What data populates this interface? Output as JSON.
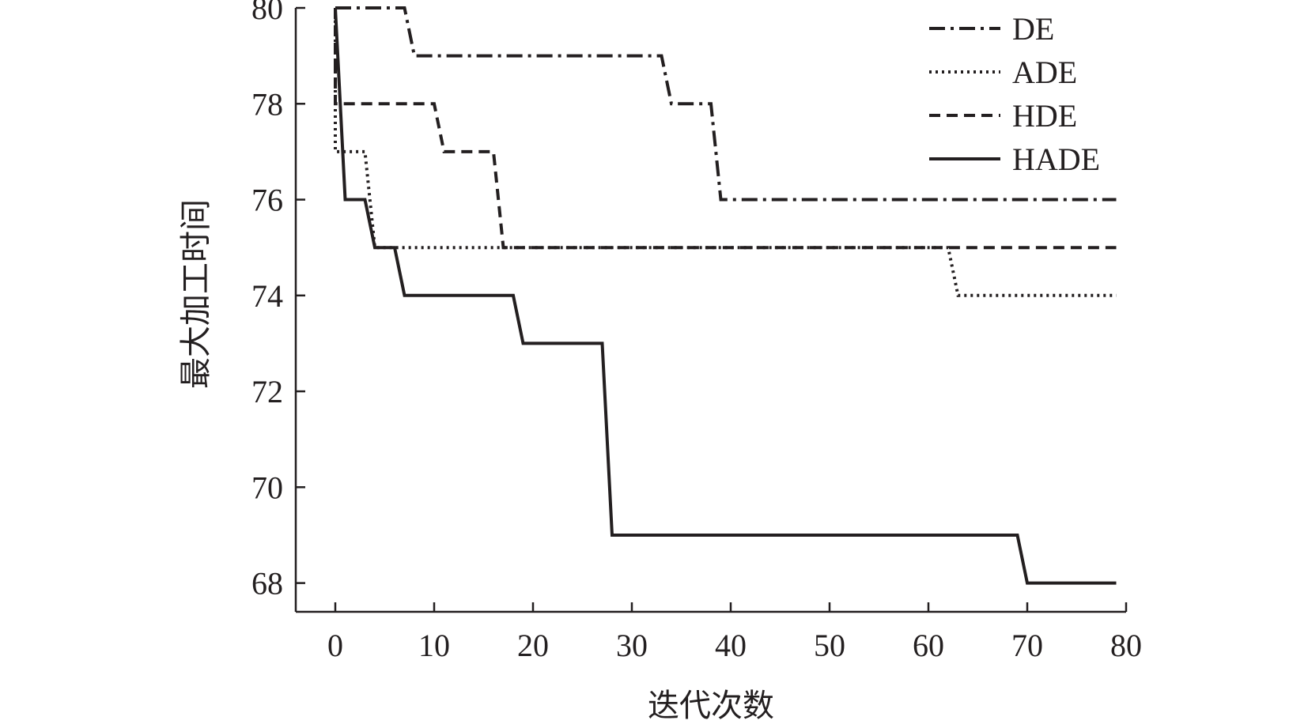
{
  "chart_data": {
    "type": "line",
    "title": "",
    "xlabel": "迭代次数",
    "ylabel": "最大加工时间",
    "xlim": [
      -4,
      80
    ],
    "ylim": [
      67.4,
      80
    ],
    "xticks": [
      0,
      10,
      20,
      30,
      40,
      50,
      60,
      70,
      80
    ],
    "yticks": [
      68,
      70,
      72,
      74,
      76,
      78,
      80
    ],
    "legend_position": "top-right",
    "grid": false,
    "series": [
      {
        "name": "DE",
        "style": "dashdot",
        "color": "#231f20",
        "points": [
          [
            0,
            80
          ],
          [
            7,
            80
          ],
          [
            8,
            79
          ],
          [
            33,
            79
          ],
          [
            34,
            78
          ],
          [
            38,
            78
          ],
          [
            39,
            76
          ],
          [
            79,
            76
          ]
        ]
      },
      {
        "name": "ADE",
        "style": "dotted",
        "color": "#231f20",
        "points": [
          [
            0,
            80
          ],
          [
            0,
            77
          ],
          [
            3,
            77
          ],
          [
            4,
            75
          ],
          [
            62,
            75
          ],
          [
            63,
            74
          ],
          [
            79,
            74
          ]
        ]
      },
      {
        "name": "HDE",
        "style": "dashed",
        "color": "#231f20",
        "points": [
          [
            0,
            80
          ],
          [
            0,
            78
          ],
          [
            10,
            78
          ],
          [
            11,
            77
          ],
          [
            16,
            77
          ],
          [
            17,
            75
          ],
          [
            79,
            75
          ]
        ]
      },
      {
        "name": "HADE",
        "style": "solid",
        "color": "#231f20",
        "points": [
          [
            0,
            80
          ],
          [
            1,
            76
          ],
          [
            3,
            76
          ],
          [
            4,
            75
          ],
          [
            6,
            75
          ],
          [
            7,
            74
          ],
          [
            18,
            74
          ],
          [
            19,
            73
          ],
          [
            27,
            73
          ],
          [
            28,
            69
          ],
          [
            69,
            69
          ],
          [
            70,
            68
          ],
          [
            79,
            68
          ]
        ]
      }
    ]
  }
}
